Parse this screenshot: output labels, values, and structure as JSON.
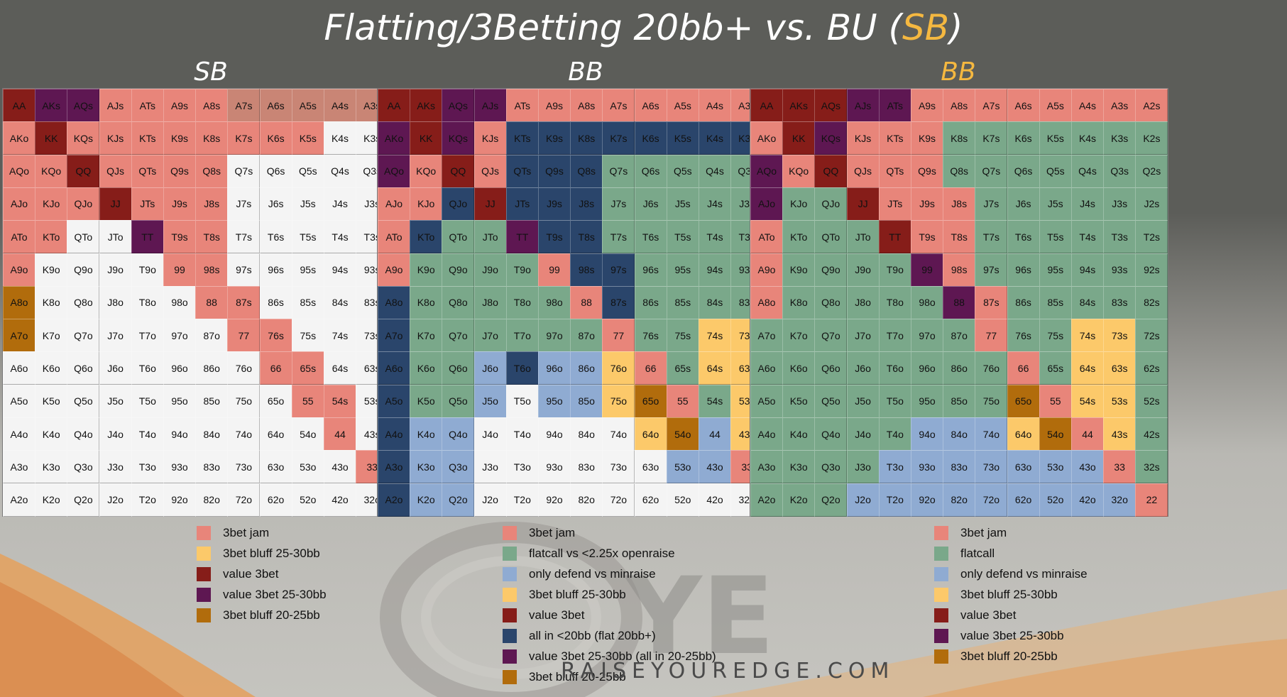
{
  "title_prefix": "Flatting/3Betting 20bb+ vs. BU (",
  "title_hl": "SB",
  "title_suffix": ")",
  "colors": {
    "J": "#e8857a",
    "Y": "#fcc96a",
    "V": "#861d19",
    "P": "#5e1752",
    "O": "#b16c0c",
    "G": "#7aa88a",
    "L": "#8fabd2",
    "N": "#2a456b",
    "W": "#f4f4f4",
    "H": "#c98575"
  },
  "charts": [
    {
      "title": "SB",
      "title_hl": false,
      "rows": [
        "VPPJJJJHHHHHH",
        "JVJJJJJJJJWWW",
        "JJVJJJJWWWWWW",
        "JJJVJJJWWWWWW",
        "JJWWPJJWWWWWW",
        "JWWWWJJWWWWWW",
        "OWWWWWJJWWWWW",
        "OWWWWWWJJWWWW",
        "WWWWWWWWJJWWW",
        "WWWWWWWWWJJWW",
        "WWWWWWWWWWJWW",
        "WWWWWWWWWWWJW",
        "WWWWWWWWWWWWJ"
      ],
      "legend": [
        {
          "color": "J",
          "label": "3bet jam"
        },
        {
          "color": "Y",
          "label": "3bet bluff 25-30bb"
        },
        {
          "color": "V",
          "label": "value 3bet"
        },
        {
          "color": "P",
          "label": "value 3bet 25-30bb"
        },
        {
          "color": "O",
          "label": "3bet bluff 20-25bb"
        }
      ]
    },
    {
      "title": "BB",
      "title_hl": false,
      "rows": [
        "VVPPJJJJJJJJJ",
        "PVPJNNNNNNNNN",
        "PJVJNNNGGGGGG",
        "JJNVNNNGGGGGG",
        "JNGGPNNGGGGGG",
        "JGGGGJNNGGGGG",
        "NGGGGGJNGGGGG",
        "NGGGGGGJGGYYG",
        "NGGLNLLYJGYYG",
        "NGGLWLLYOJGYG",
        "NLLWWWWWYOLYG",
        "NLLWWWWWWLLJG",
        "NLLWWWWWWWWWJ"
      ],
      "legend": [
        {
          "color": "J",
          "label": "3bet jam"
        },
        {
          "color": "G",
          "label": "flatcall vs <2.25x openraise"
        },
        {
          "color": "L",
          "label": "only defend vs minraise"
        },
        {
          "color": "Y",
          "label": "3bet bluff 25-30bb"
        },
        {
          "color": "V",
          "label": "value 3bet"
        },
        {
          "color": "N",
          "label": "all in <20bb (flat 20bb+)"
        },
        {
          "color": "P",
          "label": "value 3bet 25-30bb (all in 20-25bb)"
        },
        {
          "color": "O",
          "label": "3bet bluff 20-25bb"
        }
      ]
    },
    {
      "title": "BB",
      "title_hl": true,
      "rows": [
        "VVVPPJJJJJJJJ",
        "JVPJJJGGGGGGG",
        "PJVJJJGGGGGGG",
        "PGGVJJJGGGGGG",
        "JGGGVJJGGGGGG",
        "JGGGGPJGGGGGG",
        "JGGGGGPJGGGGG",
        "GGGGGGGJGGYYG",
        "GGGGGGGGJGYYG",
        "GGGGGGGGOJYYG",
        "GGGGGLLLYOJYG",
        "GGGGLLLLLLLJG",
        "GGGLLLLLLLLLJ"
      ],
      "legend": [
        {
          "color": "J",
          "label": "3bet jam"
        },
        {
          "color": "G",
          "label": "flatcall"
        },
        {
          "color": "L",
          "label": "only defend vs minraise"
        },
        {
          "color": "Y",
          "label": "3bet bluff 25-30bb"
        },
        {
          "color": "V",
          "label": "value 3bet"
        },
        {
          "color": "P",
          "label": "value 3bet 25-30bb"
        },
        {
          "color": "O",
          "label": "3bet bluff 20-25bb"
        }
      ]
    }
  ],
  "ranks": [
    "A",
    "K",
    "Q",
    "J",
    "T",
    "9",
    "8",
    "7",
    "6",
    "5",
    "4",
    "3",
    "2"
  ],
  "logo": "RAISEYOUREDGE.COM"
}
